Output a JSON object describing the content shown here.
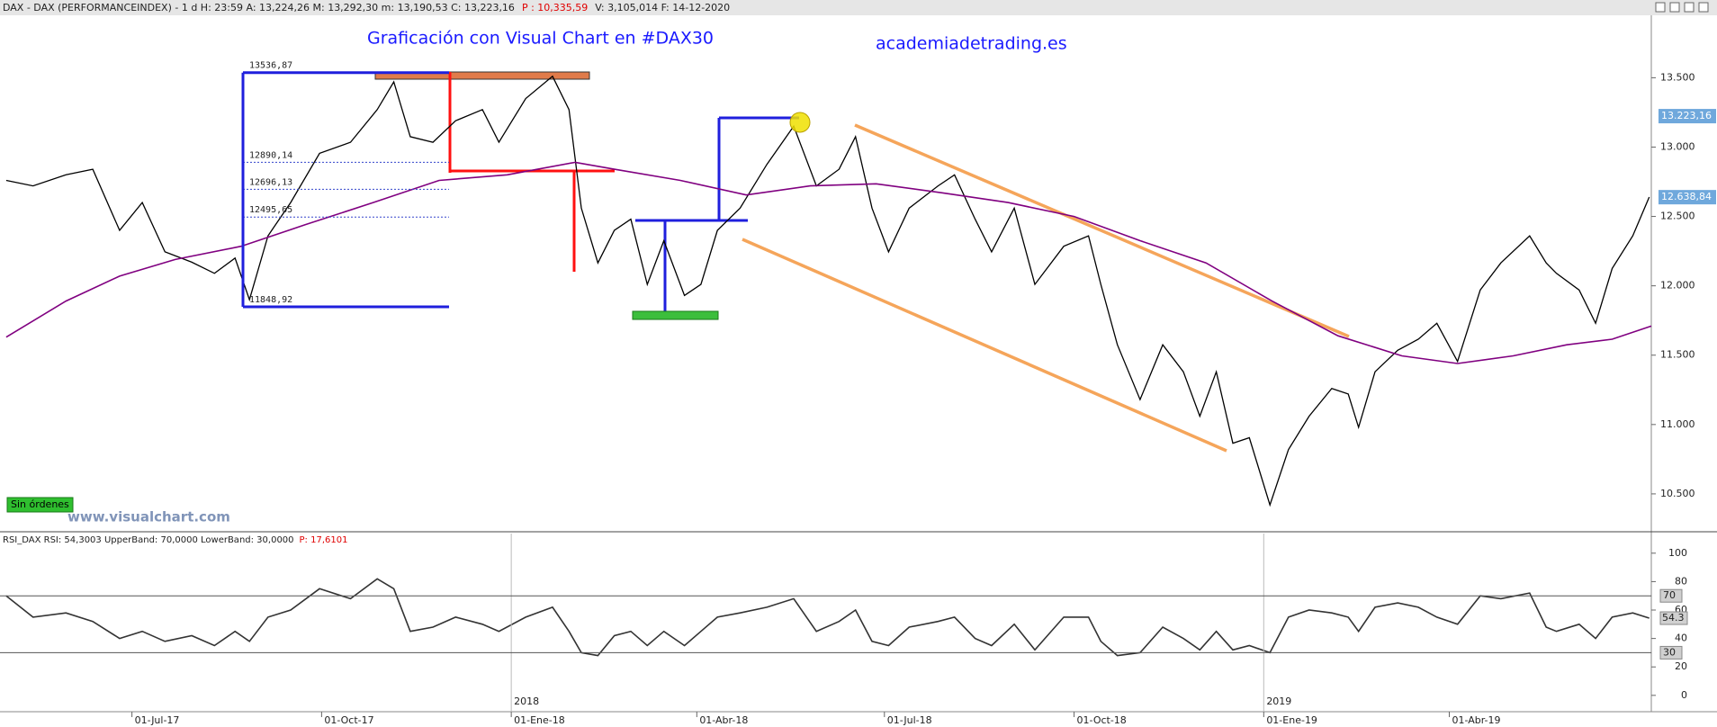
{
  "header": {
    "info": "DAX - DAX (PERFORMANCEINDEX) -   1 d H: 23:59 A: 13,224,26 M: 13,292,30 m: 13,190,53 C: 13,223,16",
    "p": "P : 10,335,59",
    "rest": "V: 3,105,014 F: 14-12-2020"
  },
  "chart_data": [
    {
      "type": "line",
      "title": "Graficación con Visual Chart en #DAX30",
      "subtitle": "academiadetrading.es",
      "watermark": "www.visualchart.com",
      "status": "Sin órdenes",
      "x": [
        "2017-05-01",
        "2017-05-14",
        "2017-05-30",
        "2017-06-12",
        "2017-06-25",
        "2017-07-06",
        "2017-07-17",
        "2017-07-30",
        "2017-08-10",
        "2017-08-20",
        "2017-08-27",
        "2017-09-05",
        "2017-09-16",
        "2017-09-30",
        "2017-10-15",
        "2017-10-28",
        "2017-11-05",
        "2017-11-13",
        "2017-11-24",
        "2017-12-05",
        "2017-12-18",
        "2017-12-26",
        "2018-01-08",
        "2018-01-21",
        "2018-01-29",
        "2018-02-04",
        "2018-02-12",
        "2018-02-20",
        "2018-02-28",
        "2018-03-08",
        "2018-03-16",
        "2018-03-26",
        "2018-04-03",
        "2018-04-11",
        "2018-04-22",
        "2018-05-05",
        "2018-05-18",
        "2018-05-29",
        "2018-06-09",
        "2018-06-17",
        "2018-06-25",
        "2018-07-03",
        "2018-07-13",
        "2018-07-27",
        "2018-08-04",
        "2018-08-14",
        "2018-08-22",
        "2018-09-02",
        "2018-09-12",
        "2018-09-26",
        "2018-10-08",
        "2018-10-14",
        "2018-10-22",
        "2018-11-02",
        "2018-11-13",
        "2018-11-23",
        "2018-12-01",
        "2018-12-09",
        "2018-12-17",
        "2018-12-25",
        "2019-01-04",
        "2019-01-13",
        "2019-01-23",
        "2019-02-03",
        "2019-02-11",
        "2019-02-16",
        "2019-02-24",
        "2019-03-07",
        "2019-03-17",
        "2019-03-26",
        "2019-04-05",
        "2019-04-16",
        "2019-04-26",
        "2019-05-10",
        "2019-05-18",
        "2019-05-23",
        "2019-06-03",
        "2019-06-11",
        "2019-06-19",
        "2019-06-29",
        "2019-07-07"
      ],
      "series": [
        {
          "color": "#000000",
          "values": [
            12760,
            12720,
            12800,
            12840,
            12400,
            12600,
            12245,
            12170,
            12090,
            12200,
            11900,
            12360,
            12600,
            12955,
            13035,
            13270,
            13470,
            13075,
            13035,
            13190,
            13270,
            13035,
            13350,
            13510,
            13270,
            12560,
            12165,
            12400,
            12480,
            12010,
            12325,
            11930,
            12010,
            12400,
            12560,
            12875,
            13150,
            12720,
            12840,
            13075,
            12560,
            12245,
            12560,
            12720,
            12800,
            12480,
            12245,
            12560,
            12010,
            12285,
            12360,
            12010,
            11575,
            11180,
            11575,
            11380,
            11060,
            11380,
            10865,
            10905,
            10420,
            10820,
            11060,
            11260,
            11220,
            10980,
            11380,
            11535,
            11615,
            11730,
            11455,
            11970,
            12165,
            12360,
            12165,
            12090,
            11970,
            11730,
            12125,
            12360,
            12640
          ]
        },
        {
          "color": "#800080",
          "x": [
            "2017-05-01",
            "2017-05-30",
            "2017-06-25",
            "2017-07-22",
            "2017-08-23",
            "2017-09-23",
            "2017-10-26",
            "2017-11-27",
            "2017-12-30",
            "2018-02-01",
            "2018-02-20",
            "2018-03-24",
            "2018-04-25",
            "2018-05-26",
            "2018-06-27",
            "2018-07-29",
            "2018-08-30",
            "2018-10-01",
            "2018-11-02",
            "2018-12-04",
            "2019-01-05",
            "2019-02-06",
            "2019-03-09",
            "2019-04-05",
            "2019-05-02",
            "2019-05-28",
            "2019-06-19",
            "2019-07-08"
          ],
          "values": [
            11630,
            11890,
            12070,
            12190,
            12285,
            12440,
            12600,
            12760,
            12800,
            12890,
            12840,
            12760,
            12655,
            12720,
            12735,
            12670,
            12600,
            12500,
            12325,
            12165,
            11890,
            11640,
            11495,
            11440,
            11495,
            11575,
            11615,
            11710
          ]
        }
      ],
      "xlim": [
        "2017-04-28",
        "2019-07-08"
      ],
      "ylim": [
        10240,
        13950
      ],
      "yticks": [
        {
          "value": 10500,
          "label": "10.500"
        },
        {
          "value": 11000,
          "label": "11.000"
        },
        {
          "value": 11500,
          "label": "11.500"
        },
        {
          "value": 12000,
          "label": "12.000"
        },
        {
          "value": 12500,
          "label": "12.500"
        },
        {
          "value": 13000,
          "label": "13.000"
        },
        {
          "value": 13500,
          "label": "13.500"
        }
      ],
      "grid": false,
      "levels": [
        {
          "value": 13536.87,
          "label": "13536,87"
        },
        {
          "value": 12890.14,
          "label": "12890,14"
        },
        {
          "value": 12696.13,
          "label": "12696,13"
        },
        {
          "value": 12495.65,
          "label": "12495,65"
        },
        {
          "value": 11848.92,
          "label": "11848,92"
        }
      ],
      "price_labels": [
        {
          "value": 13223.16,
          "label": "13.223,16"
        },
        {
          "value": 12638.84,
          "label": "12.638,84"
        }
      ]
    },
    {
      "type": "line",
      "title": "RSI_DAX RSI: 54,3003 UpperBand: 70,0000 LowerBand: 30,0000",
      "title_p": "P: 17,6101",
      "x": [
        "2017-05-01",
        "2017-05-14",
        "2017-05-30",
        "2017-06-12",
        "2017-06-25",
        "2017-07-06",
        "2017-07-17",
        "2017-07-30",
        "2017-08-10",
        "2017-08-20",
        "2017-08-27",
        "2017-09-05",
        "2017-09-16",
        "2017-09-30",
        "2017-10-15",
        "2017-10-28",
        "2017-11-05",
        "2017-11-13",
        "2017-11-24",
        "2017-12-05",
        "2017-12-18",
        "2017-12-26",
        "2018-01-08",
        "2018-01-21",
        "2018-01-29",
        "2018-02-04",
        "2018-02-12",
        "2018-02-20",
        "2018-02-28",
        "2018-03-08",
        "2018-03-16",
        "2018-03-26",
        "2018-04-03",
        "2018-04-11",
        "2018-04-22",
        "2018-05-05",
        "2018-05-18",
        "2018-05-29",
        "2018-06-09",
        "2018-06-17",
        "2018-06-25",
        "2018-07-03",
        "2018-07-13",
        "2018-07-27",
        "2018-08-04",
        "2018-08-14",
        "2018-08-22",
        "2018-09-02",
        "2018-09-12",
        "2018-09-26",
        "2018-10-08",
        "2018-10-14",
        "2018-10-22",
        "2018-11-02",
        "2018-11-13",
        "2018-11-23",
        "2018-12-01",
        "2018-12-09",
        "2018-12-17",
        "2018-12-25",
        "2019-01-04",
        "2019-01-13",
        "2019-01-23",
        "2019-02-03",
        "2019-02-11",
        "2019-02-16",
        "2019-02-24",
        "2019-03-07",
        "2019-03-17",
        "2019-03-26",
        "2019-04-05",
        "2019-04-16",
        "2019-04-26",
        "2019-05-10",
        "2019-05-18",
        "2019-05-23",
        "2019-06-03",
        "2019-06-11",
        "2019-06-19",
        "2019-06-29",
        "2019-07-07"
      ],
      "series": [
        {
          "color": "#333333",
          "values": [
            70,
            55,
            58,
            52,
            40,
            45,
            38,
            42,
            35,
            45,
            38,
            55,
            60,
            75,
            68,
            82,
            75,
            45,
            48,
            55,
            50,
            45,
            55,
            62,
            45,
            30,
            28,
            42,
            45,
            35,
            45,
            35,
            45,
            55,
            58,
            62,
            68,
            45,
            52,
            60,
            38,
            35,
            48,
            52,
            55,
            40,
            35,
            50,
            32,
            55,
            55,
            38,
            28,
            30,
            48,
            40,
            32,
            45,
            32,
            35,
            30,
            55,
            60,
            58,
            55,
            45,
            62,
            65,
            62,
            55,
            50,
            70,
            68,
            72,
            48,
            45,
            50,
            40,
            55,
            58,
            54.3
          ]
        }
      ],
      "xlim": [
        "2017-04-28",
        "2019-07-08"
      ],
      "ylim": [
        -11.5,
        113.8
      ],
      "yticks": [
        0,
        20,
        40,
        60,
        80,
        100
      ],
      "bands": [
        70,
        30
      ],
      "last_value": 54.3,
      "xticks": [
        {
          "value": "2017-07-01",
          "label": "01-Jul-17"
        },
        {
          "value": "2017-10-01",
          "label": "01-Oct-17"
        },
        {
          "value": "2018-01-01",
          "label": "01-Ene-18"
        },
        {
          "value": "2018-04-01",
          "label": "01-Abr-18"
        },
        {
          "value": "2018-07-01",
          "label": "01-Jul-18"
        },
        {
          "value": "2018-10-01",
          "label": "01-Oct-18"
        },
        {
          "value": "2019-01-01",
          "label": "01-Ene-19"
        },
        {
          "value": "2019-04-01",
          "label": "01-Abr-19"
        }
      ],
      "year_labels": [
        {
          "value": "2018-01-01",
          "label": "2018"
        },
        {
          "value": "2019-01-01",
          "label": "2019"
        }
      ]
    }
  ]
}
